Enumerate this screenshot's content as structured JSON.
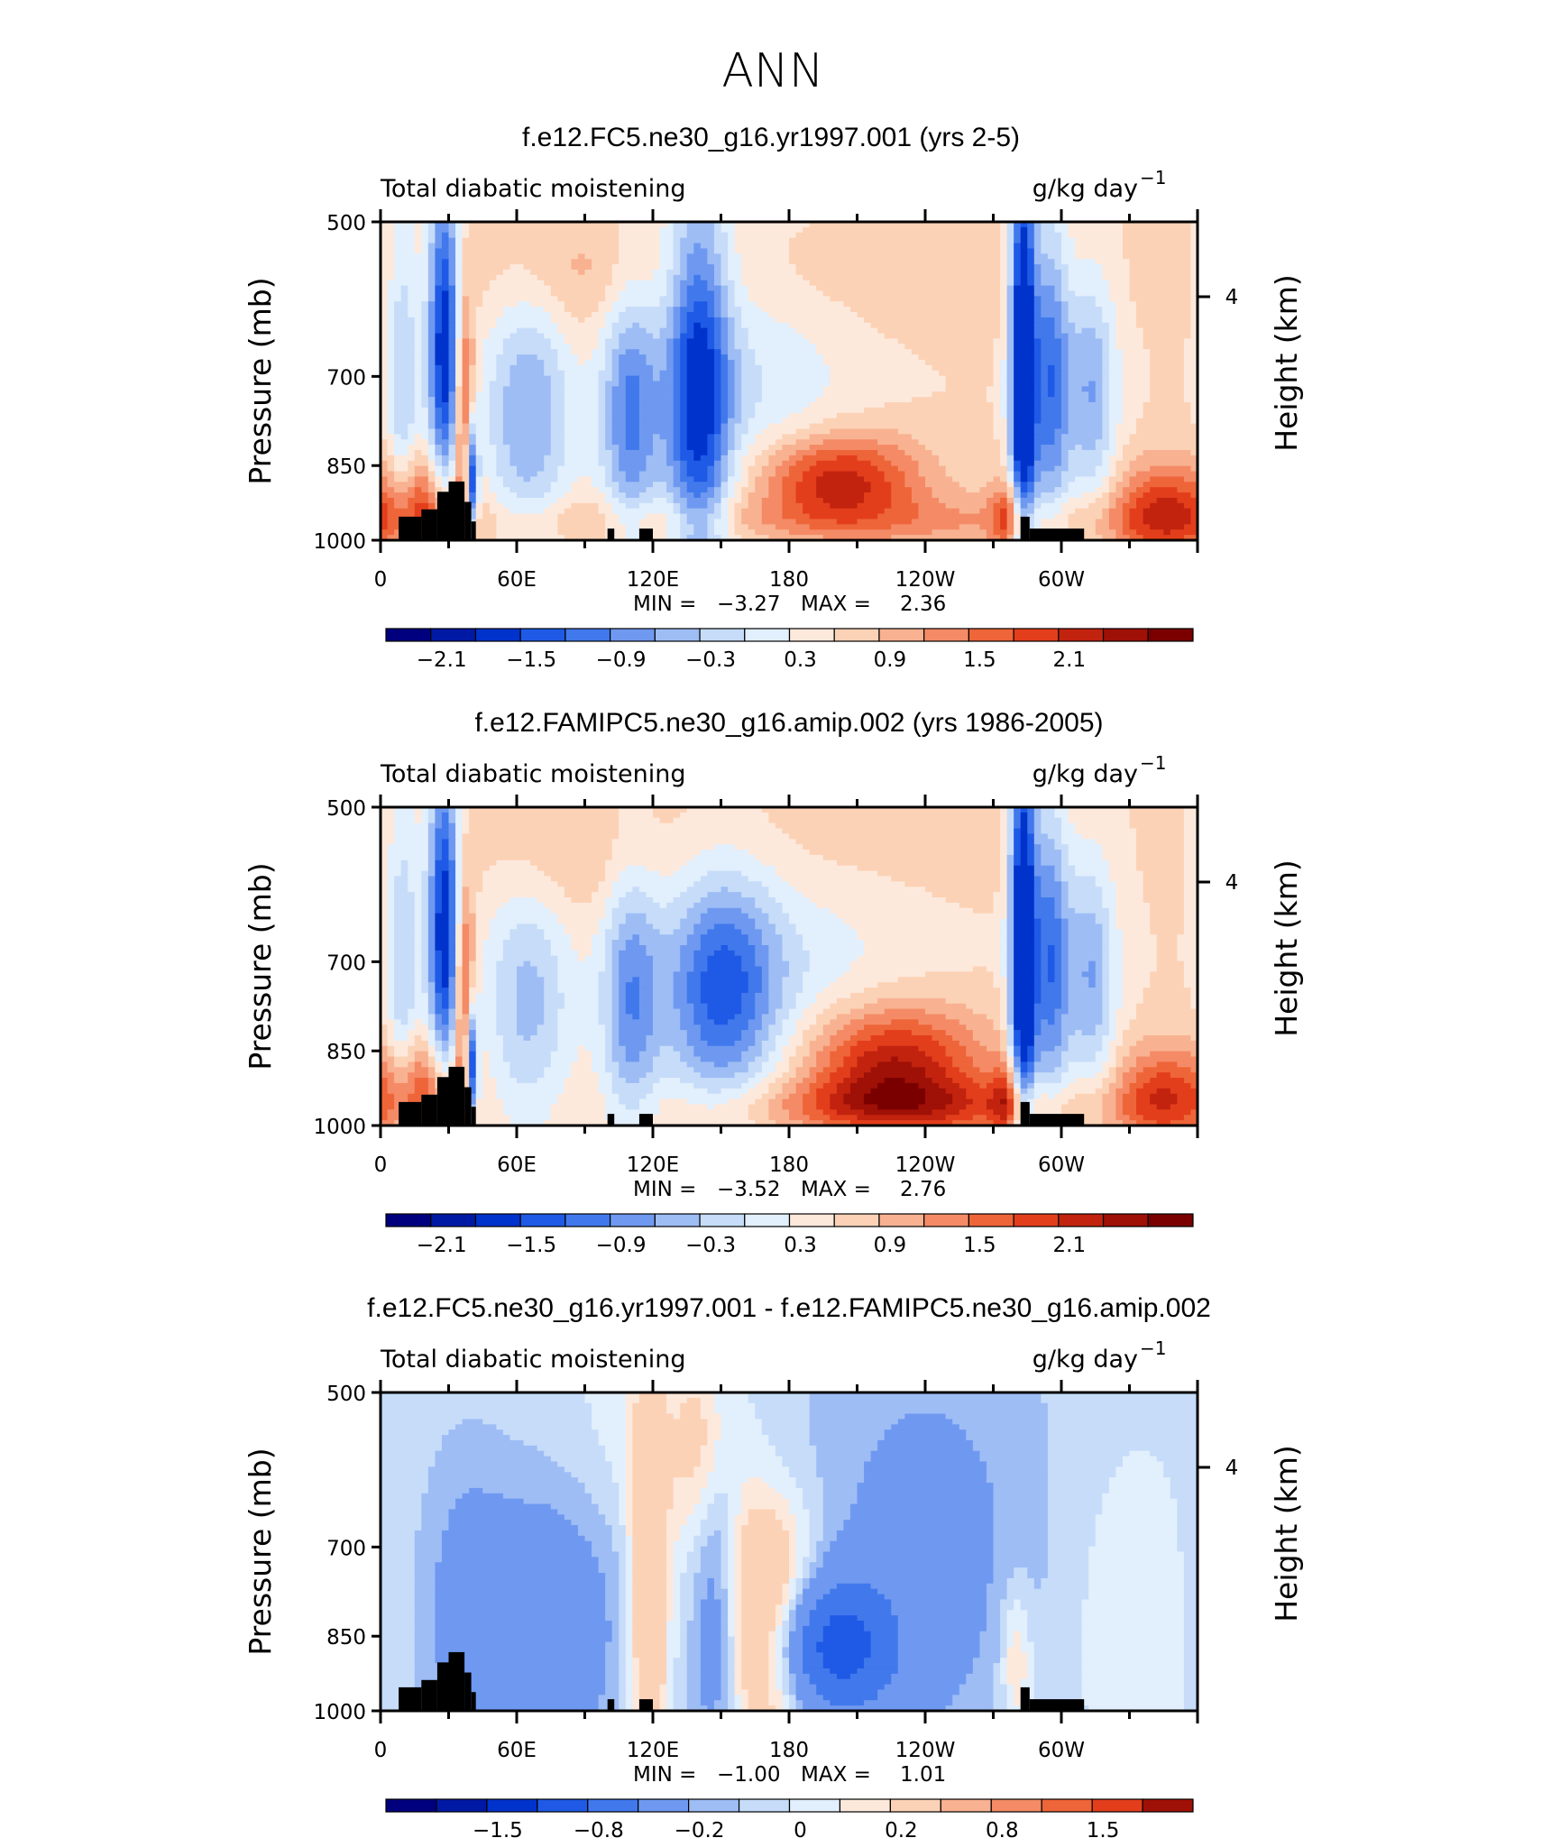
{
  "figure_title": "ANN",
  "panels": [
    {
      "title": "f.e12.FC5.ne30_g16.yr1997.001 (yrs 2-5)",
      "left_label": "Total diabatic moistening",
      "units": "g/kg day",
      "units_exp": "−1",
      "min_label": "MIN =",
      "min_value": "−3.27",
      "max_label": "MAX =",
      "max_value": "2.36",
      "colorbar_labels": [
        "−2.1",
        "−1.5",
        "−0.9",
        "−0.3",
        "0.3",
        "0.9",
        "1.5",
        "2.1"
      ]
    },
    {
      "title": "f.e12.FAMIPC5.ne30_g16.amip.002 (yrs 1986-2005)",
      "left_label": "Total diabatic moistening",
      "units": "g/kg day",
      "units_exp": "−1",
      "min_label": "MIN =",
      "min_value": "−3.52",
      "max_label": "MAX =",
      "max_value": "2.76",
      "colorbar_labels": [
        "−2.1",
        "−1.5",
        "−0.9",
        "−0.3",
        "0.3",
        "0.9",
        "1.5",
        "2.1"
      ]
    },
    {
      "title": "f.e12.FC5.ne30_g16.yr1997.001 - f.e12.FAMIPC5.ne30_g16.amip.002",
      "left_label": "Total diabatic moistening",
      "units": "g/kg day",
      "units_exp": "−1",
      "min_label": "MIN =",
      "min_value": "−1.00",
      "max_label": "MAX =",
      "max_value": "1.01",
      "colorbar_labels": [
        "−1.5",
        "−0.8",
        "−0.2",
        "0",
        "0.2",
        "0.8",
        "1.5"
      ]
    }
  ],
  "chart_data": {
    "type": "heatmap",
    "title": "ANN",
    "x_tick_labels": [
      "0",
      "60E",
      "120E",
      "180",
      "120W",
      "60W"
    ],
    "y_tick_labels": [
      "500",
      "700",
      "850",
      "1000"
    ],
    "y_ticks": [
      500,
      700,
      850,
      1000
    ],
    "ylim": [
      1000,
      500
    ],
    "ylabel": "Pressure (mb)",
    "y2label": "Height (km)",
    "y2_tick_labels": [
      "4"
    ],
    "y2_ticks": [
      4
    ],
    "colors": [
      "#00007f",
      "#0019a5",
      "#0033cc",
      "#1f5ae6",
      "#4179ec",
      "#6f99f0",
      "#9ebdf5",
      "#c6dcf9",
      "#e2effc",
      "#fde9dc",
      "#fcd2b6",
      "#f8b291",
      "#f48b66",
      "#ee6539",
      "#e33e1c",
      "#c2230e",
      "#9f1006",
      "#7a0000"
    ],
    "diff_colors": [
      "#00007f",
      "#0019a5",
      "#0033cc",
      "#1f5ae6",
      "#4179ec",
      "#6f99f0",
      "#9ebdf5",
      "#c6dcf9",
      "#e2effc",
      "#fde9dc",
      "#fcd2b6",
      "#f8b291",
      "#f48b66",
      "#ee6539",
      "#e33e1c",
      "#9f1006"
    ],
    "fields": [
      {
        "name": "f.e12.FC5.ne30_g16.yr1997.001 (yrs 2-5)",
        "min": -3.27,
        "max": 2.36,
        "features": [
          {
            "lon": 28,
            "p": 650,
            "dlon": 5,
            "dp": 150,
            "amp": -2.4
          },
          {
            "lon": 10,
            "p": 720,
            "dlon": 5,
            "dp": 180,
            "amp": -0.9
          },
          {
            "lon": 37,
            "p": 760,
            "dlon": 3,
            "dp": 130,
            "amp": 1.6
          },
          {
            "lon": 40,
            "p": 880,
            "dlon": 2,
            "dp": 80,
            "amp": -2.6
          },
          {
            "lon": 20,
            "p": 940,
            "dlon": 12,
            "dp": 80,
            "amp": 1.3
          },
          {
            "lon": 65,
            "p": 760,
            "dlon": 14,
            "dp": 140,
            "amp": -1.2
          },
          {
            "lon": 110,
            "p": 760,
            "dlon": 9,
            "dp": 140,
            "amp": -1.5
          },
          {
            "lon": 140,
            "p": 720,
            "dlon": 10,
            "dp": 190,
            "amp": -2.1
          },
          {
            "lon": 165,
            "p": 740,
            "dlon": 30,
            "dp": 160,
            "amp": -0.6
          },
          {
            "lon": 200,
            "p": 875,
            "dlon": 26,
            "dp": 60,
            "amp": 1.8
          },
          {
            "lon": 200,
            "p": 960,
            "dlon": 140,
            "dp": 40,
            "amp": 0.6
          },
          {
            "lon": 283,
            "p": 700,
            "dlon": 4,
            "dp": 220,
            "amp": -3.0
          },
          {
            "lon": 295,
            "p": 700,
            "dlon": 6,
            "dp": 150,
            "amp": -1.7
          },
          {
            "lon": 313,
            "p": 720,
            "dlon": 8,
            "dp": 120,
            "amp": -1.2
          },
          {
            "lon": 278,
            "p": 950,
            "dlon": 6,
            "dp": 60,
            "amp": 1.2
          },
          {
            "lon": 345,
            "p": 940,
            "dlon": 15,
            "dp": 70,
            "amp": 1.4
          },
          {
            "lon": 175,
            "p": 560,
            "dlon": 90,
            "dp": 50,
            "amp": 0.25
          },
          {
            "lon": 80,
            "p": 560,
            "dlon": 25,
            "dp": 50,
            "amp": 0.3
          }
        ]
      },
      {
        "name": "f.e12.FAMIPC5.ne30_g16.amip.002 (yrs 1986-2005)",
        "min": -3.52,
        "max": 2.76,
        "features": [
          {
            "lon": 28,
            "p": 650,
            "dlon": 5,
            "dp": 150,
            "amp": -2.4
          },
          {
            "lon": 10,
            "p": 720,
            "dlon": 5,
            "dp": 180,
            "amp": -0.9
          },
          {
            "lon": 37,
            "p": 760,
            "dlon": 3,
            "dp": 130,
            "amp": 1.6
          },
          {
            "lon": 40,
            "p": 880,
            "dlon": 2,
            "dp": 80,
            "amp": -2.6
          },
          {
            "lon": 20,
            "p": 940,
            "dlon": 12,
            "dp": 80,
            "amp": 1.3
          },
          {
            "lon": 65,
            "p": 760,
            "dlon": 14,
            "dp": 130,
            "amp": -1.0
          },
          {
            "lon": 110,
            "p": 760,
            "dlon": 9,
            "dp": 140,
            "amp": -1.3
          },
          {
            "lon": 150,
            "p": 740,
            "dlon": 18,
            "dp": 120,
            "amp": -1.7
          },
          {
            "lon": 185,
            "p": 720,
            "dlon": 40,
            "dp": 150,
            "amp": -0.5
          },
          {
            "lon": 225,
            "p": 880,
            "dlon": 28,
            "dp": 80,
            "amp": 2.0
          },
          {
            "lon": 230,
            "p": 960,
            "dlon": 60,
            "dp": 40,
            "amp": 1.0
          },
          {
            "lon": 283,
            "p": 700,
            "dlon": 4,
            "dp": 220,
            "amp": -3.0
          },
          {
            "lon": 295,
            "p": 700,
            "dlon": 6,
            "dp": 150,
            "amp": -1.7
          },
          {
            "lon": 313,
            "p": 720,
            "dlon": 8,
            "dp": 120,
            "amp": -1.2
          },
          {
            "lon": 278,
            "p": 950,
            "dlon": 6,
            "dp": 60,
            "amp": 1.2
          },
          {
            "lon": 345,
            "p": 940,
            "dlon": 15,
            "dp": 70,
            "amp": 1.4
          },
          {
            "lon": 190,
            "p": 540,
            "dlon": 60,
            "dp": 60,
            "amp": 0.3
          },
          {
            "lon": 80,
            "p": 560,
            "dlon": 25,
            "dp": 50,
            "amp": 0.3
          }
        ]
      },
      {
        "name": "f.e12.FC5.ne30_g16.yr1997.001 - f.e12.FAMIPC5.ne30_g16.amip.002",
        "min": -1.0,
        "max": 1.01,
        "features": [
          {
            "lon": 195,
            "p": 870,
            "dlon": 22,
            "dp": 90,
            "amp": -0.95
          },
          {
            "lon": 170,
            "p": 840,
            "dlon": 16,
            "dp": 140,
            "amp": 0.85
          },
          {
            "lon": 148,
            "p": 720,
            "dlon": 8,
            "dp": 220,
            "amp": -0.5
          },
          {
            "lon": 145,
            "p": 560,
            "dlon": 10,
            "dp": 90,
            "amp": 0.5
          },
          {
            "lon": 75,
            "p": 820,
            "dlon": 25,
            "dp": 200,
            "amp": -0.35
          },
          {
            "lon": 118,
            "p": 800,
            "dlon": 6,
            "dp": 250,
            "amp": 0.5
          },
          {
            "lon": 35,
            "p": 800,
            "dlon": 15,
            "dp": 200,
            "amp": -0.2
          },
          {
            "lon": 240,
            "p": 700,
            "dlon": 50,
            "dp": 250,
            "amp": -0.25
          },
          {
            "lon": 280,
            "p": 900,
            "dlon": 5,
            "dp": 100,
            "amp": 0.3
          },
          {
            "lon": 320,
            "p": 800,
            "dlon": 20,
            "dp": 200,
            "amp": 0.1
          },
          {
            "lon": 105,
            "p": 570,
            "dlon": 30,
            "dp": 80,
            "amp": 0.1
          }
        ]
      }
    ],
    "contour_levels_panels_1_2": [
      -2.1,
      -1.8,
      -1.5,
      -1.2,
      -0.9,
      -0.6,
      -0.3,
      0,
      0.3,
      0.6,
      0.9,
      1.2,
      1.5,
      1.8,
      2.1
    ],
    "contour_levels_panel_3": [
      -1.5,
      -1.2,
      -0.8,
      -0.5,
      -0.2,
      -0.1,
      0,
      0.1,
      0.2,
      0.5,
      0.8,
      1.2,
      1.5
    ],
    "topography": [
      {
        "lon0": 8,
        "lon1": 18,
        "p": 950
      },
      {
        "lon0": 18,
        "lon1": 25,
        "p": 935
      },
      {
        "lon0": 25,
        "lon1": 30,
        "p": 900
      },
      {
        "lon0": 30,
        "lon1": 37,
        "p": 880
      },
      {
        "lon0": 37,
        "lon1": 40,
        "p": 920
      },
      {
        "lon0": 40,
        "lon1": 42,
        "p": 960
      },
      {
        "lon0": 100,
        "lon1": 103,
        "p": 975
      },
      {
        "lon0": 114,
        "lon1": 120,
        "p": 975
      },
      {
        "lon0": 282,
        "lon1": 286,
        "p": 950
      },
      {
        "lon0": 286,
        "lon1": 310,
        "p": 975
      }
    ]
  }
}
